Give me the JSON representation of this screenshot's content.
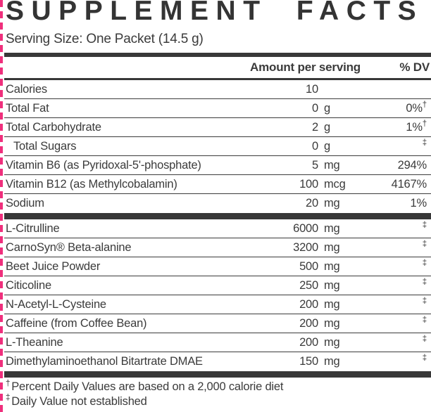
{
  "colors": {
    "accent_pink": "#EF2F7C",
    "ink": "#3B3B3B"
  },
  "header": {
    "title": "SUPPLEMENT FACTS",
    "serving_size": "Serving Size: One Packet (14.5 g)"
  },
  "table": {
    "columns": {
      "amount": "Amount per serving",
      "dv": "% DV"
    },
    "rows": [
      {
        "name": "Calories",
        "amount_value": "10",
        "amount_unit": "",
        "dv": "",
        "dv_sup": ""
      },
      {
        "name": "Total Fat",
        "amount_value": "0",
        "amount_unit": "g",
        "dv": "0%",
        "dv_sup": "†"
      },
      {
        "name": "Total Carbohydrate",
        "amount_value": "2",
        "amount_unit": "g",
        "dv": "1%",
        "dv_sup": "†"
      },
      {
        "name": "Total Sugars",
        "amount_value": "0",
        "amount_unit": "g",
        "dv": "",
        "dv_sup": "‡"
      },
      {
        "name": "Vitamin B6 (as Pyridoxal-5'-phosphate)",
        "amount_value": "5",
        "amount_unit": "mg",
        "dv": "294%",
        "dv_sup": ""
      },
      {
        "name": "Vitamin B12 (as Methylcobalamin)",
        "amount_value": "100",
        "amount_unit": "mcg",
        "dv": "4167%",
        "dv_sup": ""
      },
      {
        "name": "Sodium",
        "amount_value": "20",
        "amount_unit": "mg",
        "dv": "1%",
        "dv_sup": ""
      },
      {
        "name": "L-Citrulline",
        "amount_value": "6000",
        "amount_unit": "mg",
        "dv": "",
        "dv_sup": "‡"
      },
      {
        "name": "CarnoSyn® Beta-alanine",
        "amount_value": "3200",
        "amount_unit": "mg",
        "dv": "",
        "dv_sup": "‡"
      },
      {
        "name": "Beet Juice Powder",
        "amount_value": "500",
        "amount_unit": "mg",
        "dv": "",
        "dv_sup": "‡"
      },
      {
        "name": "Citicoline",
        "amount_value": "250",
        "amount_unit": "mg",
        "dv": "",
        "dv_sup": "‡"
      },
      {
        "name": "N-Acetyl-L-Cysteine",
        "amount_value": "200",
        "amount_unit": "mg",
        "dv": "",
        "dv_sup": "‡"
      },
      {
        "name": "Caffeine (from Coffee Bean)",
        "amount_value": "200",
        "amount_unit": "mg",
        "dv": "",
        "dv_sup": "‡"
      },
      {
        "name": "L-Theanine",
        "amount_value": "200",
        "amount_unit": "mg",
        "dv": "",
        "dv_sup": "‡"
      },
      {
        "name": "Dimethylaminoethanol Bitartrate DMAE",
        "amount_value": "150",
        "amount_unit": "mg",
        "dv": "",
        "dv_sup": "‡"
      }
    ]
  },
  "footnotes": [
    {
      "symbol": "†",
      "text": "Percent Daily Values are based on a 2,000 calorie diet"
    },
    {
      "symbol": "‡",
      "text": "Daily Value not established"
    }
  ]
}
